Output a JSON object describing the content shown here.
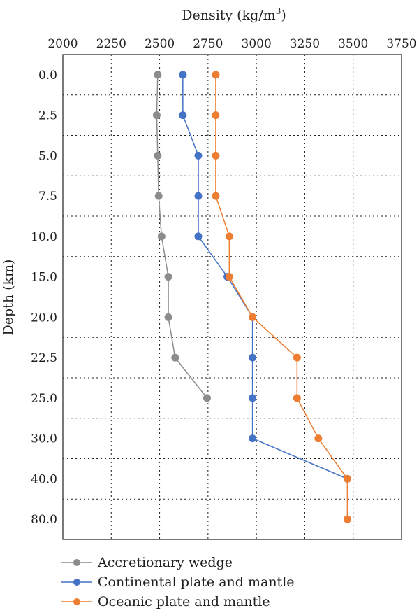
{
  "chart_data": {
    "type": "line",
    "xlabel": "Density (kg/m",
    "xlabel_sup": "3",
    "xlabel_close": ")",
    "ylabel": "Depth (km)",
    "xlim": [
      2000,
      3750
    ],
    "x_ticks": [
      "2000",
      "2250",
      "2500",
      "2750",
      "3000",
      "3250",
      "3500",
      "3750"
    ],
    "categories": [
      "0.0",
      "2.5",
      "5.0",
      "7.5",
      "10.0",
      "15.0",
      "20.0",
      "22.5",
      "25.0",
      "30.0",
      "40.0",
      "80.0"
    ],
    "grid": true,
    "legend_position": "bottom",
    "series": [
      {
        "name": "Accretionary wedge",
        "color": "#8c8c8c",
        "values": [
          2490,
          2485,
          2490,
          2495,
          2510,
          2545,
          2545,
          2580,
          2745,
          null,
          null,
          null
        ]
      },
      {
        "name": "Continental plate and mantle",
        "color": "#4472c4",
        "values": [
          2620,
          2620,
          2700,
          2700,
          2700,
          2850,
          2980,
          2980,
          2980,
          2980,
          3470,
          null
        ]
      },
      {
        "name": "Oceanic plate and mantle",
        "color": "#ed7d31",
        "values": [
          2790,
          2790,
          2790,
          2790,
          2860,
          2860,
          2980,
          3210,
          3210,
          3320,
          3470,
          3470
        ]
      }
    ]
  }
}
